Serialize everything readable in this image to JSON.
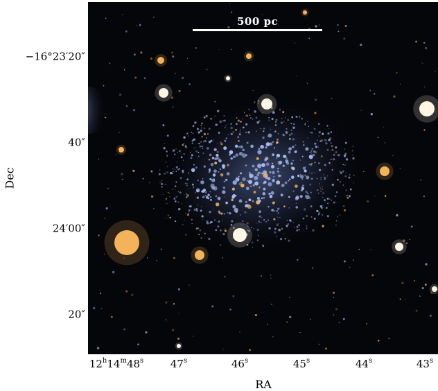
{
  "scale_bar": {
    "label": "500 pc"
  },
  "axes": {
    "xlabel": "RA",
    "ylabel": "Dec",
    "xticks": [
      {
        "h": "12",
        "h_unit": "h",
        "m": "14",
        "m_unit": "m",
        "s": "48",
        "s_unit": "s"
      },
      {
        "s": "47",
        "s_unit": "s"
      },
      {
        "s": "46",
        "s_unit": "s"
      },
      {
        "s": "45",
        "s_unit": "s"
      },
      {
        "s": "44",
        "s_unit": "s"
      },
      {
        "s": "43",
        "s_unit": "s"
      }
    ],
    "yticks": [
      "−16°23′20″",
      "40″",
      "24′00″",
      "20″"
    ]
  },
  "colors": {
    "sky": "#05060a",
    "galaxy_blue": "#a9bdf5",
    "star_orange": "#f3b35a",
    "star_white": "#fff6e6"
  }
}
